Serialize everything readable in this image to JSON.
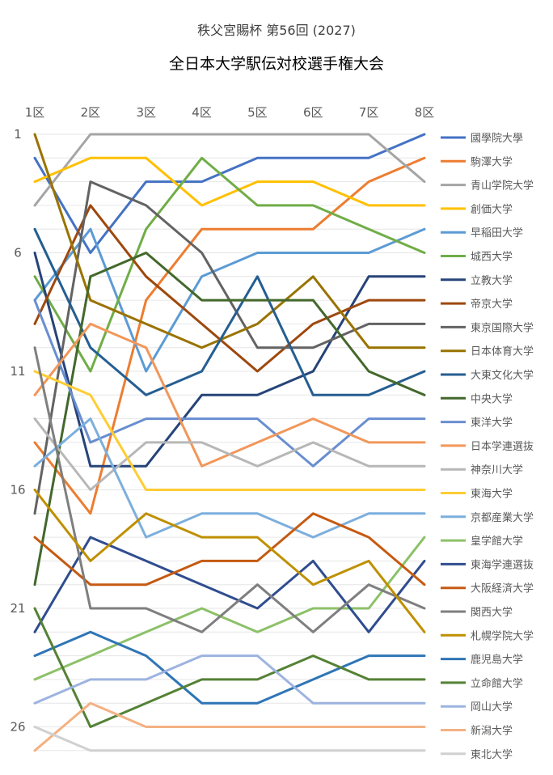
{
  "chart_data": {
    "type": "line",
    "title": "全日本大学駅伝対校選手権大会",
    "subtitle": "秩父宮賜杯 第56回 (2027)",
    "categories": [
      "1区",
      "2区",
      "3区",
      "4区",
      "5区",
      "6区",
      "7区",
      "8区"
    ],
    "y_ticks": [
      "1",
      "6",
      "11",
      "16",
      "21",
      "26"
    ],
    "ylim": [
      1,
      27
    ],
    "y_reversed": true,
    "grid": true,
    "legend_position": "right",
    "series": [
      {
        "name": "國學院大學",
        "color": "#4472C4",
        "values": [
          2,
          6,
          3,
          3,
          2,
          2,
          2,
          1
        ]
      },
      {
        "name": "駒澤大学",
        "color": "#ED7D31",
        "values": [
          14,
          17,
          8,
          5,
          5,
          5,
          3,
          2
        ]
      },
      {
        "name": "青山学院大学",
        "color": "#A5A5A5",
        "values": [
          4,
          1,
          1,
          1,
          1,
          1,
          1,
          3
        ]
      },
      {
        "name": "創価大学",
        "color": "#FFC000",
        "values": [
          3,
          2,
          2,
          4,
          3,
          3,
          4,
          4
        ]
      },
      {
        "name": "早稲田大学",
        "color": "#5B9BD5",
        "values": [
          8,
          5,
          11,
          7,
          6,
          6,
          6,
          5
        ]
      },
      {
        "name": "城西大学",
        "color": "#70AD47",
        "values": [
          7,
          11,
          5,
          2,
          4,
          4,
          5,
          6
        ]
      },
      {
        "name": "立教大学",
        "color": "#264478",
        "values": [
          6,
          15,
          15,
          12,
          12,
          11,
          7,
          7
        ]
      },
      {
        "name": "帝京大学",
        "color": "#9E480E",
        "values": [
          9,
          4,
          7,
          9,
          11,
          9,
          8,
          8
        ]
      },
      {
        "name": "東京国際大学",
        "color": "#636363",
        "values": [
          17,
          3,
          4,
          6,
          10,
          10,
          9,
          9
        ]
      },
      {
        "name": "日本体育大学",
        "color": "#997300",
        "values": [
          1,
          8,
          9,
          10,
          9,
          7,
          10,
          10
        ]
      },
      {
        "name": "大東文化大学",
        "color": "#255E91",
        "values": [
          5,
          10,
          12,
          11,
          7,
          12,
          12,
          11
        ]
      },
      {
        "name": "中央大学",
        "color": "#43682B",
        "values": [
          20,
          7,
          6,
          8,
          8,
          8,
          11,
          12
        ]
      },
      {
        "name": "東洋大学",
        "color": "#698ED0",
        "values": [
          8,
          14,
          13,
          13,
          13,
          15,
          13,
          13
        ]
      },
      {
        "name": "日本学連選抜",
        "color": "#F1975A",
        "values": [
          12,
          9,
          10,
          15,
          14,
          13,
          14,
          14
        ]
      },
      {
        "name": "神奈川大学",
        "color": "#B7B7B7",
        "values": [
          13,
          16,
          14,
          14,
          15,
          14,
          15,
          15
        ]
      },
      {
        "name": "東海大学",
        "color": "#FFCD33",
        "values": [
          11,
          12,
          16,
          16,
          16,
          16,
          16,
          16
        ]
      },
      {
        "name": "京都産業大学",
        "color": "#7CAFDD",
        "values": [
          15,
          13,
          18,
          17,
          17,
          18,
          17,
          17
        ]
      },
      {
        "name": "皇学館大学",
        "color": "#8CC168",
        "values": [
          24,
          23,
          22,
          21,
          22,
          21,
          21,
          18
        ]
      },
      {
        "name": "東海学連選抜",
        "color": "#2F4D8F",
        "values": [
          22,
          18,
          19,
          20,
          21,
          19,
          22,
          19
        ]
      },
      {
        "name": "大阪経済大学",
        "color": "#C55A11",
        "values": [
          18,
          20,
          20,
          19,
          19,
          17,
          18,
          20
        ]
      },
      {
        "name": "関西大学",
        "color": "#7F7F7F",
        "values": [
          10,
          21,
          21,
          22,
          20,
          22,
          20,
          21
        ]
      },
      {
        "name": "札幌学院大学",
        "color": "#BF9000",
        "values": [
          16,
          19,
          17,
          18,
          18,
          20,
          19,
          22
        ]
      },
      {
        "name": "鹿児島大学",
        "color": "#2E75B6",
        "values": [
          23,
          22,
          23,
          25,
          25,
          24,
          23,
          23
        ]
      },
      {
        "name": "立命館大学",
        "color": "#548235",
        "values": [
          21,
          26,
          25,
          24,
          24,
          23,
          24,
          24
        ]
      },
      {
        "name": "岡山大学",
        "color": "#9DB3E0",
        "values": [
          25,
          24,
          24,
          23,
          23,
          25,
          25,
          25
        ]
      },
      {
        "name": "新潟大学",
        "color": "#F4B183",
        "values": [
          27,
          25,
          26,
          26,
          26,
          26,
          26,
          26
        ]
      },
      {
        "name": "東北大学",
        "color": "#D0D0D0",
        "values": [
          26,
          27,
          27,
          27,
          27,
          27,
          27,
          27
        ]
      }
    ]
  }
}
